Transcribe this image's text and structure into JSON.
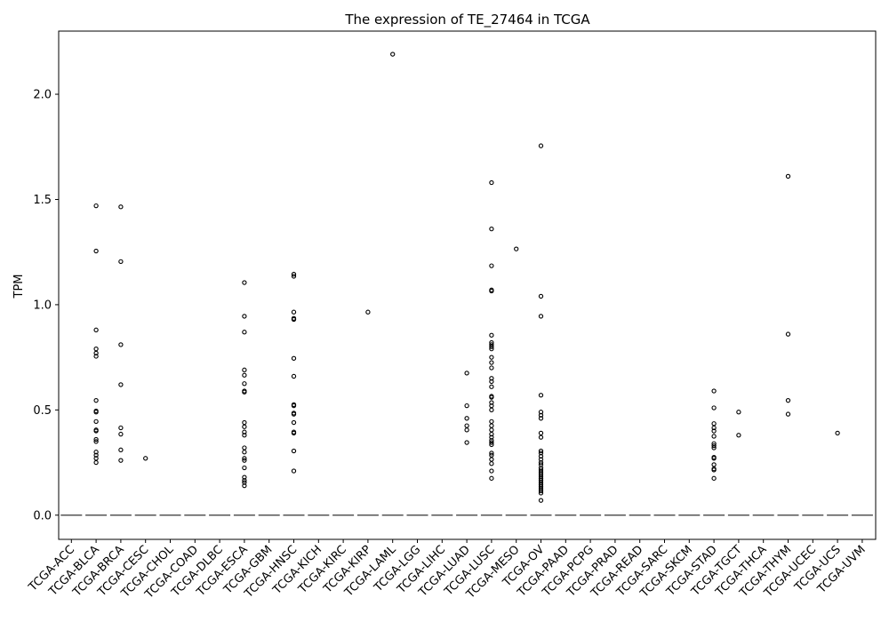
{
  "chart_data": {
    "type": "box",
    "title": "The expression of TE_27464 in TCGA",
    "xlabel": "",
    "ylabel": "TPM",
    "ylim": [
      -0.115,
      2.3
    ],
    "yticks": [
      "0.0",
      "0.5",
      "1.0",
      "1.5",
      "2.0"
    ],
    "ytick_values": [
      0.0,
      0.5,
      1.0,
      1.5,
      2.0
    ],
    "grid": false,
    "legend": "none",
    "colors": {
      "box": "#4c72b0",
      "median": "#555555",
      "outlier_edge": "#000000",
      "axis": "#000000"
    },
    "categories": [
      "TCGA-ACC",
      "TCGA-BLCA",
      "TCGA-BRCA",
      "TCGA-CESC",
      "TCGA-CHOL",
      "TCGA-COAD",
      "TCGA-DLBC",
      "TCGA-ESCA",
      "TCGA-GBM",
      "TCGA-HNSC",
      "TCGA-KICH",
      "TCGA-KIRC",
      "TCGA-KIRP",
      "TCGA-LAML",
      "TCGA-LGG",
      "TCGA-LIHC",
      "TCGA-LUAD",
      "TCGA-LUSC",
      "TCGA-MESO",
      "TCGA-OV",
      "TCGA-PAAD",
      "TCGA-PCPG",
      "TCGA-PRAD",
      "TCGA-READ",
      "TCGA-SARC",
      "TCGA-SKCM",
      "TCGA-STAD",
      "TCGA-TGCT",
      "TCGA-THCA",
      "TCGA-THYM",
      "TCGA-UCEC",
      "TCGA-UCS",
      "TCGA-UVM"
    ],
    "medians": [
      0,
      0,
      0,
      0,
      0,
      0,
      0,
      0,
      0,
      0,
      0,
      0,
      0,
      0,
      0,
      0,
      0,
      0,
      0,
      0,
      0,
      0,
      0,
      0,
      0,
      0,
      0,
      0,
      0,
      0,
      0,
      0,
      0
    ],
    "outliers": [
      [],
      [
        1.47,
        1.255,
        0.88,
        0.79,
        0.77,
        0.755,
        0.545,
        0.495,
        0.49,
        0.445,
        0.405,
        0.4,
        0.36,
        0.35,
        0.3,
        0.285,
        0.27,
        0.25
      ],
      [
        1.465,
        1.205,
        0.81,
        0.62,
        0.415,
        0.385,
        0.31,
        0.26
      ],
      [
        0.27
      ],
      [],
      [],
      [],
      [
        1.105,
        0.945,
        0.87,
        0.69,
        0.665,
        0.625,
        0.59,
        0.585,
        0.44,
        0.42,
        0.395,
        0.38,
        0.32,
        0.3,
        0.27,
        0.26,
        0.225,
        0.18,
        0.165,
        0.155,
        0.14
      ],
      [],
      [
        1.145,
        1.135,
        0.965,
        0.935,
        0.93,
        0.745,
        0.66,
        0.525,
        0.52,
        0.485,
        0.48,
        0.44,
        0.395,
        0.39,
        0.305,
        0.21
      ],
      [],
      [],
      [
        0.965
      ],
      [
        2.19
      ],
      [],
      [],
      [
        0.675,
        0.52,
        0.46,
        0.425,
        0.405,
        0.345
      ],
      [
        1.58,
        1.36,
        1.185,
        1.07,
        1.065,
        0.855,
        0.82,
        0.81,
        0.8,
        0.79,
        0.75,
        0.725,
        0.7,
        0.65,
        0.635,
        0.61,
        0.565,
        0.56,
        0.535,
        0.52,
        0.5,
        0.445,
        0.425,
        0.405,
        0.385,
        0.37,
        0.355,
        0.345,
        0.335,
        0.295,
        0.285,
        0.265,
        0.245,
        0.21,
        0.175
      ],
      [
        1.265
      ],
      [
        1.755,
        1.04,
        0.945,
        0.57,
        0.49,
        0.475,
        0.46,
        0.39,
        0.37,
        0.305,
        0.295,
        0.28,
        0.265,
        0.25,
        0.24,
        0.225,
        0.215,
        0.205,
        0.195,
        0.185,
        0.175,
        0.165,
        0.155,
        0.145,
        0.135,
        0.125,
        0.115,
        0.105,
        0.07
      ],
      [],
      [],
      [],
      [],
      [],
      [],
      [
        0.59,
        0.51,
        0.435,
        0.415,
        0.4,
        0.375,
        0.34,
        0.33,
        0.32,
        0.275,
        0.27,
        0.24,
        0.22,
        0.215,
        0.175
      ],
      [
        0.49,
        0.38
      ],
      [],
      [
        1.61,
        0.86,
        0.545,
        0.48
      ],
      [],
      [
        0.39
      ],
      []
    ]
  }
}
